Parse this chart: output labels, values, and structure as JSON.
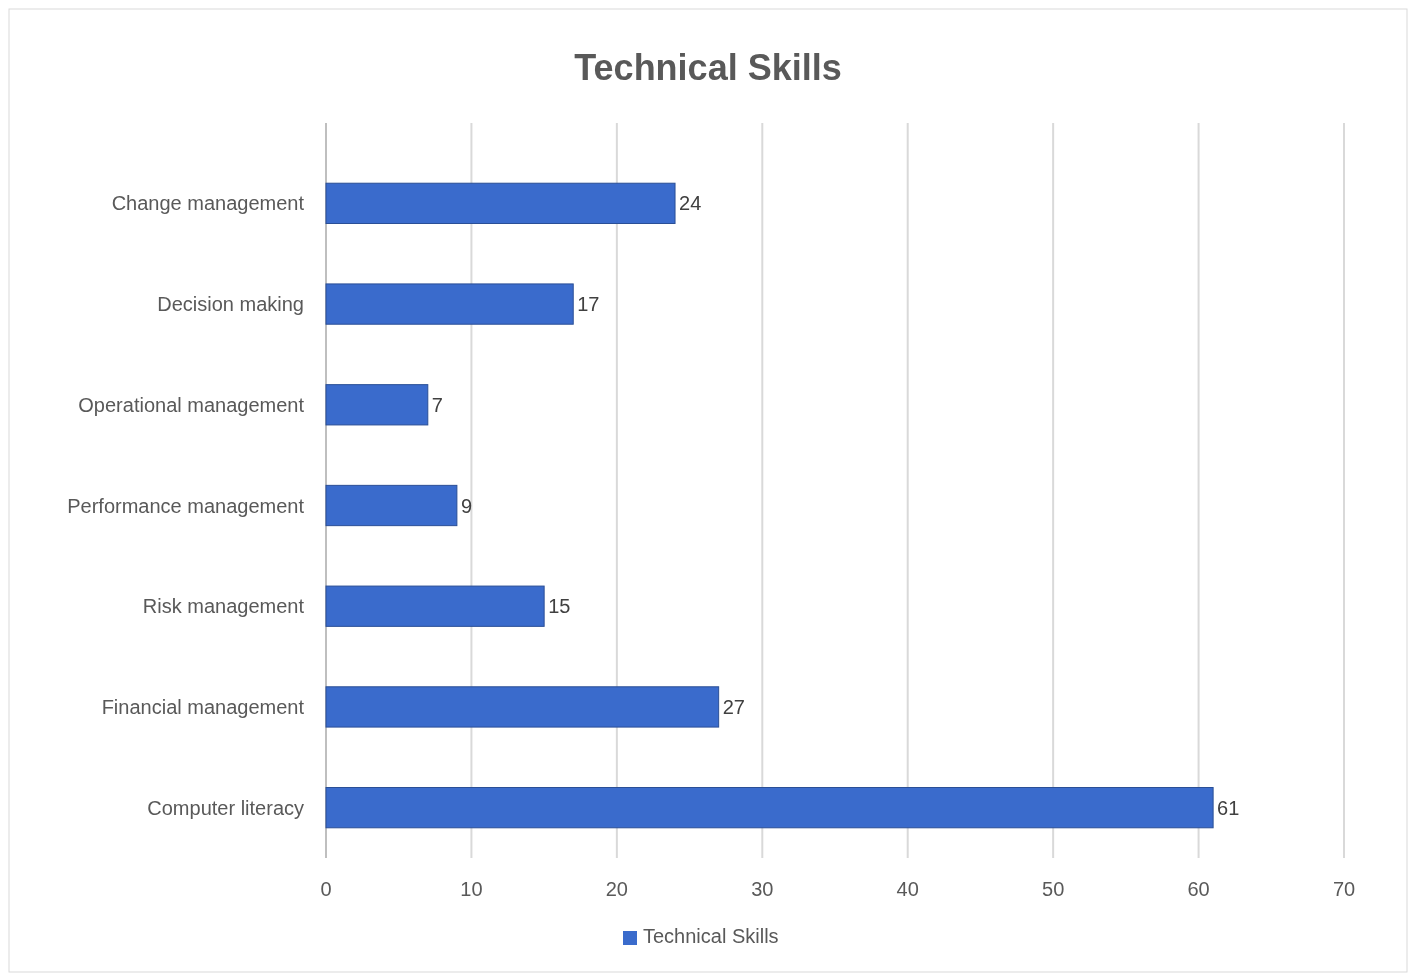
{
  "chart_data": {
    "type": "bar",
    "orientation": "horizontal",
    "title": "Technical Skills",
    "categories": [
      "Change management",
      "Decision making",
      "Operational management",
      "Performance management",
      "Risk management",
      "Financial management",
      "Computer literacy"
    ],
    "series": [
      {
        "name": "Technical Skills",
        "color": "#3a6bcc",
        "values": [
          24,
          17,
          7,
          9,
          15,
          27,
          61
        ]
      }
    ],
    "xlim": [
      0,
      70
    ],
    "xticks": [
      0,
      10,
      20,
      30,
      40,
      50,
      60,
      70
    ],
    "grid": "x",
    "legend": "bottom",
    "data_labels": true
  }
}
